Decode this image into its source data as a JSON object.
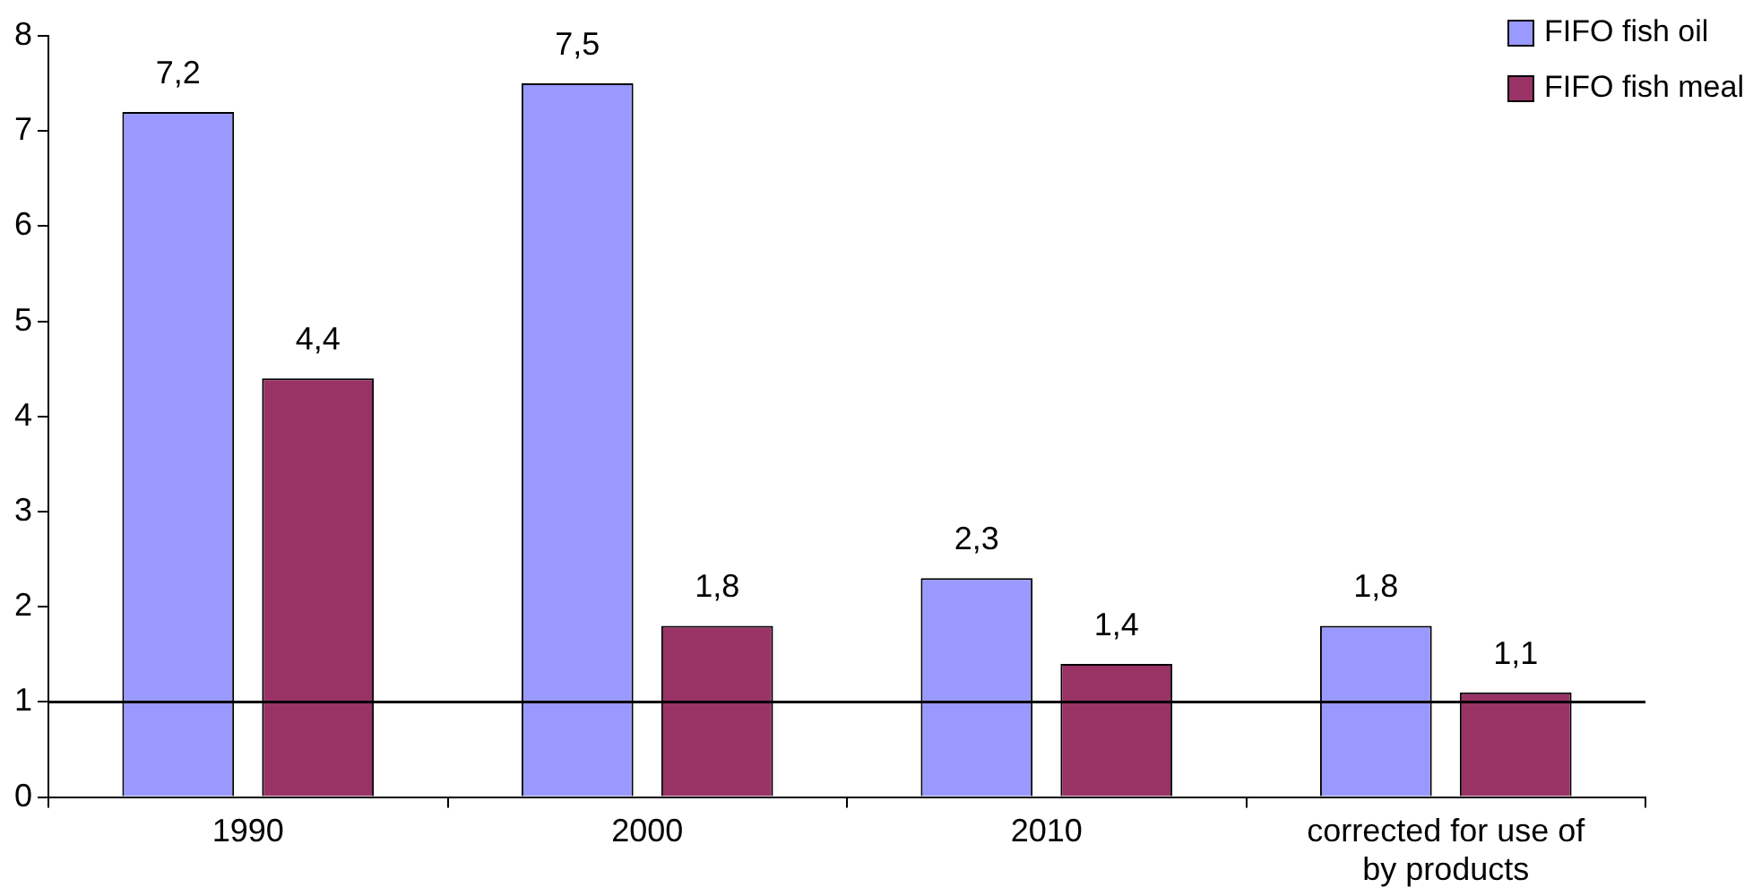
{
  "chart_data": {
    "type": "bar",
    "categories": [
      "1990",
      "2000",
      "2010",
      "corrected for use of by products"
    ],
    "series": [
      {
        "name": "FIFO fish oil",
        "color": "#9999ff",
        "values": [
          7.2,
          7.5,
          2.3,
          1.8
        ],
        "value_labels": [
          "7,2",
          "7,5",
          "2,3",
          "1,8"
        ]
      },
      {
        "name": "FIFO fish meal",
        "color": "#993366",
        "values": [
          4.4,
          1.8,
          1.4,
          1.1
        ],
        "value_labels": [
          "4,4",
          "1,8",
          "1,4",
          "1,1"
        ]
      }
    ],
    "ylim": [
      0,
      8
    ],
    "yticks": [
      0,
      1,
      2,
      3,
      4,
      5,
      6,
      7,
      8
    ],
    "grid": false,
    "legend": "top right",
    "ref_lines": [
      {
        "axis": "y",
        "value": 1,
        "color": "#000000"
      }
    ]
  }
}
